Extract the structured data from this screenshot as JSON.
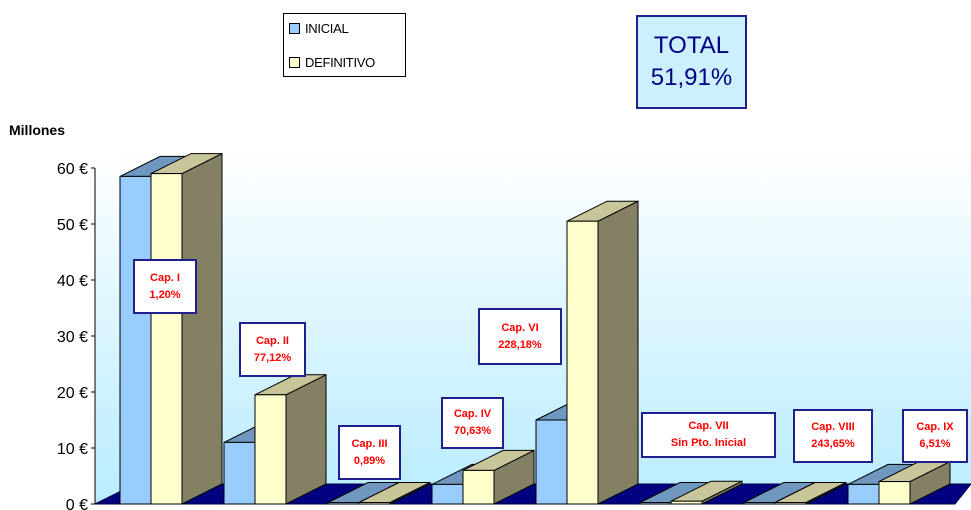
{
  "legend": {
    "items": [
      {
        "label": "INICIAL",
        "color": "#99ccff"
      },
      {
        "label": "DEFINITIVO",
        "color": "#ffffcc"
      }
    ]
  },
  "total": {
    "line1": "TOTAL",
    "line2": "51,91%"
  },
  "axis": {
    "units_label": "Millones"
  },
  "chart_data": {
    "type": "bar",
    "title": "",
    "xlabel": "",
    "ylabel": "Millones",
    "ylim": [
      0,
      60
    ],
    "yticks": [
      "0 €",
      "10 €",
      "20 €",
      "30 €",
      "40 €",
      "50 €",
      "60 €"
    ],
    "categories": [
      "Cap. I",
      "Cap. II",
      "Cap. III",
      "Cap. IV",
      "Cap. VI",
      "Cap. VII",
      "Cap. VIII",
      "Cap. IX"
    ],
    "series": [
      {
        "name": "INICIAL",
        "color": "#99ccff",
        "values": [
          58.5,
          11.0,
          0.0,
          3.5,
          15.0,
          0.0,
          0.0,
          3.5
        ]
      },
      {
        "name": "DEFINITIVO",
        "color": "#ffffcc",
        "values": [
          59.0,
          19.5,
          0.0,
          6.0,
          50.5,
          0.5,
          0.0,
          4.0
        ]
      }
    ],
    "annotations": [
      {
        "line1": "Cap. I",
        "line2": "1,20%"
      },
      {
        "line1": "Cap. II",
        "line2": "77,12%"
      },
      {
        "line1": "Cap. III",
        "line2": "0,89%"
      },
      {
        "line1": "Cap. IV",
        "line2": "70,63%"
      },
      {
        "line1": "Cap. VI",
        "line2": "228,18%"
      },
      {
        "line1": "Cap. VII",
        "line2": "Sin Pto. Inicial"
      },
      {
        "line1": "Cap. VIII",
        "line2": "243,65%"
      },
      {
        "line1": "Cap. IX",
        "line2": "6,51%"
      }
    ],
    "grid": false,
    "legend_position": "top"
  }
}
